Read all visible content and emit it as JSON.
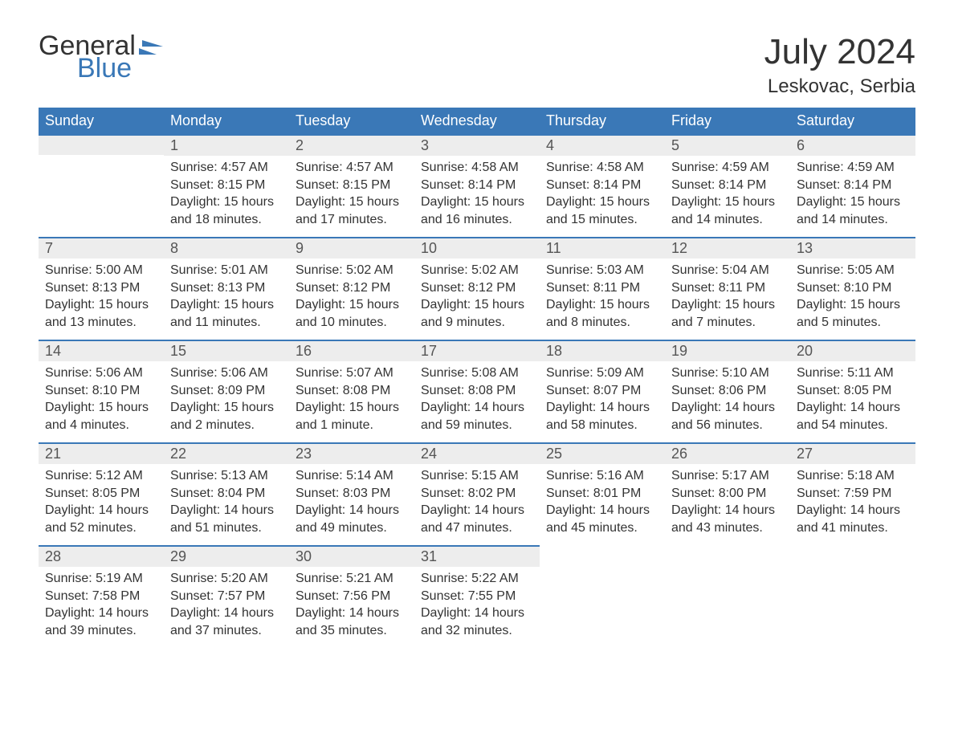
{
  "logo": {
    "line1": "General",
    "line2": "Blue",
    "accent_color": "#3a78b7"
  },
  "title": {
    "month": "July 2024",
    "location": "Leskovac, Serbia"
  },
  "colors": {
    "header_bg": "#3a78b7",
    "header_text": "#ffffff",
    "daynum_bg": "#ededed",
    "daynum_border": "#3a78b7",
    "body_text": "#333333",
    "page_bg": "#ffffff"
  },
  "fontsizes": {
    "title_month": 44,
    "title_location": 24,
    "weekday_header": 18,
    "day_number": 18,
    "day_body": 16,
    "logo": 34
  },
  "weekdays": [
    "Sunday",
    "Monday",
    "Tuesday",
    "Wednesday",
    "Thursday",
    "Friday",
    "Saturday"
  ],
  "first_weekday_offset": 1,
  "days": [
    {
      "n": 1,
      "sunrise": "4:57 AM",
      "sunset": "8:15 PM",
      "daylight": "15 hours and 18 minutes."
    },
    {
      "n": 2,
      "sunrise": "4:57 AM",
      "sunset": "8:15 PM",
      "daylight": "15 hours and 17 minutes."
    },
    {
      "n": 3,
      "sunrise": "4:58 AM",
      "sunset": "8:14 PM",
      "daylight": "15 hours and 16 minutes."
    },
    {
      "n": 4,
      "sunrise": "4:58 AM",
      "sunset": "8:14 PM",
      "daylight": "15 hours and 15 minutes."
    },
    {
      "n": 5,
      "sunrise": "4:59 AM",
      "sunset": "8:14 PM",
      "daylight": "15 hours and 14 minutes."
    },
    {
      "n": 6,
      "sunrise": "4:59 AM",
      "sunset": "8:14 PM",
      "daylight": "15 hours and 14 minutes."
    },
    {
      "n": 7,
      "sunrise": "5:00 AM",
      "sunset": "8:13 PM",
      "daylight": "15 hours and 13 minutes."
    },
    {
      "n": 8,
      "sunrise": "5:01 AM",
      "sunset": "8:13 PM",
      "daylight": "15 hours and 11 minutes."
    },
    {
      "n": 9,
      "sunrise": "5:02 AM",
      "sunset": "8:12 PM",
      "daylight": "15 hours and 10 minutes."
    },
    {
      "n": 10,
      "sunrise": "5:02 AM",
      "sunset": "8:12 PM",
      "daylight": "15 hours and 9 minutes."
    },
    {
      "n": 11,
      "sunrise": "5:03 AM",
      "sunset": "8:11 PM",
      "daylight": "15 hours and 8 minutes."
    },
    {
      "n": 12,
      "sunrise": "5:04 AM",
      "sunset": "8:11 PM",
      "daylight": "15 hours and 7 minutes."
    },
    {
      "n": 13,
      "sunrise": "5:05 AM",
      "sunset": "8:10 PM",
      "daylight": "15 hours and 5 minutes."
    },
    {
      "n": 14,
      "sunrise": "5:06 AM",
      "sunset": "8:10 PM",
      "daylight": "15 hours and 4 minutes."
    },
    {
      "n": 15,
      "sunrise": "5:06 AM",
      "sunset": "8:09 PM",
      "daylight": "15 hours and 2 minutes."
    },
    {
      "n": 16,
      "sunrise": "5:07 AM",
      "sunset": "8:08 PM",
      "daylight": "15 hours and 1 minute."
    },
    {
      "n": 17,
      "sunrise": "5:08 AM",
      "sunset": "8:08 PM",
      "daylight": "14 hours and 59 minutes."
    },
    {
      "n": 18,
      "sunrise": "5:09 AM",
      "sunset": "8:07 PM",
      "daylight": "14 hours and 58 minutes."
    },
    {
      "n": 19,
      "sunrise": "5:10 AM",
      "sunset": "8:06 PM",
      "daylight": "14 hours and 56 minutes."
    },
    {
      "n": 20,
      "sunrise": "5:11 AM",
      "sunset": "8:05 PM",
      "daylight": "14 hours and 54 minutes."
    },
    {
      "n": 21,
      "sunrise": "5:12 AM",
      "sunset": "8:05 PM",
      "daylight": "14 hours and 52 minutes."
    },
    {
      "n": 22,
      "sunrise": "5:13 AM",
      "sunset": "8:04 PM",
      "daylight": "14 hours and 51 minutes."
    },
    {
      "n": 23,
      "sunrise": "5:14 AM",
      "sunset": "8:03 PM",
      "daylight": "14 hours and 49 minutes."
    },
    {
      "n": 24,
      "sunrise": "5:15 AM",
      "sunset": "8:02 PM",
      "daylight": "14 hours and 47 minutes."
    },
    {
      "n": 25,
      "sunrise": "5:16 AM",
      "sunset": "8:01 PM",
      "daylight": "14 hours and 45 minutes."
    },
    {
      "n": 26,
      "sunrise": "5:17 AM",
      "sunset": "8:00 PM",
      "daylight": "14 hours and 43 minutes."
    },
    {
      "n": 27,
      "sunrise": "5:18 AM",
      "sunset": "7:59 PM",
      "daylight": "14 hours and 41 minutes."
    },
    {
      "n": 28,
      "sunrise": "5:19 AM",
      "sunset": "7:58 PM",
      "daylight": "14 hours and 39 minutes."
    },
    {
      "n": 29,
      "sunrise": "5:20 AM",
      "sunset": "7:57 PM",
      "daylight": "14 hours and 37 minutes."
    },
    {
      "n": 30,
      "sunrise": "5:21 AM",
      "sunset": "7:56 PM",
      "daylight": "14 hours and 35 minutes."
    },
    {
      "n": 31,
      "sunrise": "5:22 AM",
      "sunset": "7:55 PM",
      "daylight": "14 hours and 32 minutes."
    }
  ],
  "labels": {
    "sunrise": "Sunrise: ",
    "sunset": "Sunset: ",
    "daylight": "Daylight: "
  }
}
